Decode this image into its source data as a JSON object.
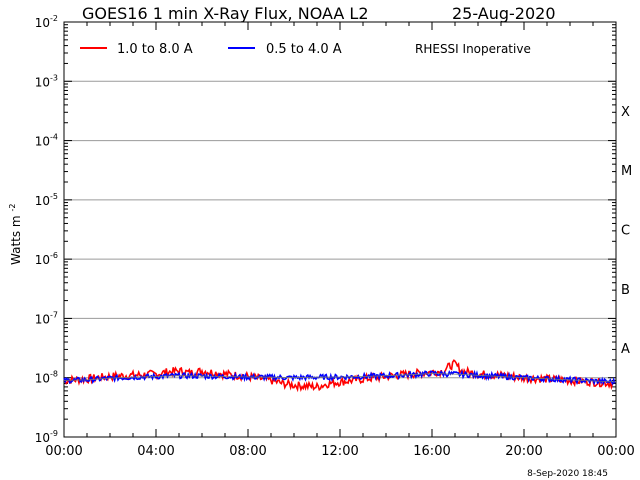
{
  "chart_data": {
    "type": "line",
    "title": "GOES16 1 min X-Ray Flux, NOAA L2",
    "date": "25-Aug-2020",
    "ylabel_base": "Watts m",
    "ylabel_exp": "-2",
    "yscale": "log",
    "ylim": [
      1e-09,
      0.01
    ],
    "y_ticks": [
      {
        "base": "10",
        "exp": "-9",
        "value": 1e-09
      },
      {
        "base": "10",
        "exp": "-8",
        "value": 1e-08
      },
      {
        "base": "10",
        "exp": "-7",
        "value": 1e-07
      },
      {
        "base": "10",
        "exp": "-6",
        "value": 1e-06
      },
      {
        "base": "10",
        "exp": "-5",
        "value": 1e-05
      },
      {
        "base": "10",
        "exp": "-4",
        "value": 0.0001
      },
      {
        "base": "10",
        "exp": "-3",
        "value": 0.001
      },
      {
        "base": "10",
        "exp": "-2",
        "value": 0.01
      }
    ],
    "xlim_hours": [
      0,
      24
    ],
    "x_ticks": [
      {
        "label": "00:00",
        "hour": 0
      },
      {
        "label": "04:00",
        "hour": 4
      },
      {
        "label": "08:00",
        "hour": 8
      },
      {
        "label": "12:00",
        "hour": 12
      },
      {
        "label": "16:00",
        "hour": 16
      },
      {
        "label": "20:00",
        "hour": 20
      },
      {
        "label": "00:00",
        "hour": 24
      }
    ],
    "flare_classes": [
      {
        "label": "A",
        "value": 1e-08
      },
      {
        "label": "B",
        "value": 1e-07
      },
      {
        "label": "C",
        "value": 1e-06
      },
      {
        "label": "M",
        "value": 1e-05
      },
      {
        "label": "X",
        "value": 0.0001
      }
    ],
    "grid": true,
    "legend_position": "top",
    "annotation": "RHESSI Inoperative",
    "timestamp": "8-Sep-2020 18:45",
    "series": [
      {
        "name": "1.0 to 8.0 A",
        "color": "#ff0000",
        "hours": [
          0,
          1,
          2,
          3,
          4,
          4.5,
          5,
          5.5,
          6,
          7,
          8,
          9,
          9.5,
          10,
          11,
          11.5,
          12,
          13,
          14,
          15,
          16,
          16.5,
          16.8,
          17,
          17.3,
          18,
          19,
          20,
          21,
          22,
          23,
          24
        ],
        "values": [
          9e-09,
          9.5e-09,
          1.05e-08,
          1.1e-08,
          1.15e-08,
          1.25e-08,
          1.3e-08,
          1.2e-08,
          1.3e-08,
          1.15e-08,
          1.05e-08,
          9e-09,
          8e-09,
          7.5e-09,
          7e-09,
          8e-09,
          8.5e-09,
          9.5e-09,
          1.05e-08,
          1.15e-08,
          1.25e-08,
          1.3e-08,
          1.6e-08,
          1.7e-08,
          1.3e-08,
          1.15e-08,
          1.1e-08,
          1e-08,
          9.5e-09,
          9e-09,
          8.5e-09,
          8e-09
        ]
      },
      {
        "name": "0.5 to 4.0 A",
        "color": "#0000ff",
        "hours": [
          0,
          1,
          2,
          3,
          4,
          5,
          6,
          7,
          8,
          9,
          10,
          11,
          12,
          13,
          14,
          15,
          16,
          17,
          18,
          19,
          20,
          21,
          22,
          23,
          24
        ],
        "values": [
          9e-09,
          9.2e-09,
          9.8e-09,
          1.02e-08,
          1.05e-08,
          1.08e-08,
          1.07e-08,
          1.05e-08,
          1.03e-08,
          1.02e-08,
          1e-08,
          1.02e-08,
          1.03e-08,
          1.05e-08,
          1.08e-08,
          1.12e-08,
          1.18e-08,
          1.15e-08,
          1.1e-08,
          1.05e-08,
          1e-08,
          9.6e-09,
          9.2e-09,
          8.8e-09,
          8.5e-09
        ]
      }
    ]
  }
}
